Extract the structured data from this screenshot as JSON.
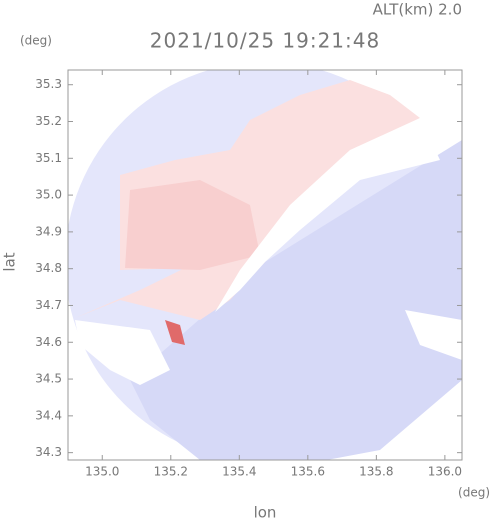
{
  "chart_data": {
    "type": "radar-field",
    "title": "2021/10/25 19:21:48",
    "subtitle": "ALT(km) 2.0",
    "y_unit": "(deg)",
    "x_unit": "(deg)",
    "x_label": "lon",
    "y_label": "lat",
    "xlim": [
      134.9,
      136.05
    ],
    "ylim": [
      34.28,
      35.34
    ],
    "xticks": [
      {
        "value": 135,
        "label": "135.0"
      },
      135.2,
      135.4,
      135.6,
      135.8,
      {
        "value": 136,
        "label": "136.0"
      }
    ],
    "yticks": [
      34.3,
      34.4,
      34.5,
      34.6,
      34.7,
      34.8,
      34.9,
      {
        "value": 35,
        "label": "35.0"
      },
      35.1,
      35.2,
      35.3
    ]
  }
}
